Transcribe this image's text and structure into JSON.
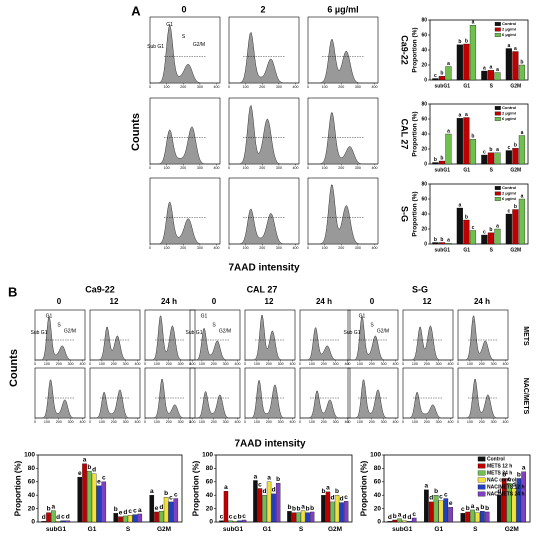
{
  "panel_a": {
    "label": "A",
    "doses": [
      "0",
      "2",
      "6 µg/ml"
    ],
    "cell_lines": [
      "Ca9-22",
      "CAL 27",
      "S-G"
    ],
    "y_label": "Counts",
    "x_label": "7AAD intensity",
    "phase_labels": [
      "Sub G1",
      "G1",
      "S",
      "G2/M"
    ],
    "histogram_xticks": [
      0,
      100,
      200,
      300,
      400
    ],
    "charts": [
      {
        "type": "bar",
        "y_label": "Proportion (%)",
        "categories": [
          "subG1",
          "G1",
          "S",
          "G2M"
        ],
        "ylim": [
          0,
          80
        ],
        "yticks": [
          0,
          20,
          40,
          60,
          80
        ],
        "series": [
          {
            "name": "Control",
            "color": "#111111",
            "values": [
              2,
              47,
              12,
              42
            ],
            "letters": [
              "c",
              "b",
              "a",
              "a"
            ]
          },
          {
            "name": "2 µg/ml",
            "color": "#c00000",
            "values": [
              5,
              48,
              13,
              38
            ],
            "letters": [
              "b",
              "b",
              "a",
              "a"
            ]
          },
          {
            "name": "6 µg/ml",
            "color": "#70c050",
            "values": [
              18,
              73,
              10,
              20
            ],
            "letters": [
              "a",
              "a",
              "a",
              "b"
            ]
          }
        ]
      },
      {
        "type": "bar",
        "y_label": "Proportion (%)",
        "categories": [
          "subG1",
          "G1",
          "S",
          "G2M"
        ],
        "ylim": [
          0,
          80
        ],
        "yticks": [
          0,
          20,
          40,
          60,
          80
        ],
        "series": [
          {
            "name": "Control",
            "color": "#111111",
            "values": [
              2,
              61,
              12,
              18
            ],
            "letters": [
              "b",
              "a",
              "c",
              "c"
            ]
          },
          {
            "name": "2 µg/ml",
            "color": "#c00000",
            "values": [
              4,
              62,
              15,
              21
            ],
            "letters": [
              "b",
              "a",
              "b",
              "b"
            ]
          },
          {
            "name": "6 µg/ml",
            "color": "#70c050",
            "values": [
              40,
              33,
              15,
              38
            ],
            "letters": [
              "a",
              "b",
              "a",
              "a"
            ]
          }
        ]
      },
      {
        "type": "bar",
        "y_label": "Proportion (%)",
        "categories": [
          "subG1",
          "G1",
          "S",
          "G2M"
        ],
        "ylim": [
          0,
          80
        ],
        "yticks": [
          0,
          20,
          40,
          60,
          80
        ],
        "series": [
          {
            "name": "Control",
            "color": "#111111",
            "values": [
              2,
              48,
              12,
              40
            ],
            "letters": [
              "b",
              "a",
              "c",
              "c"
            ]
          },
          {
            "name": "2 µg/ml",
            "color": "#c00000",
            "values": [
              2,
              32,
              15,
              46
            ],
            "letters": [
              "b",
              "b",
              "b",
              "b"
            ]
          },
          {
            "name": "6 µg/ml",
            "color": "#70c050",
            "values": [
              1,
              18,
              20,
              60
            ],
            "letters": [
              "a",
              "c",
              "a",
              "a"
            ]
          }
        ]
      }
    ]
  },
  "panel_b": {
    "label": "B",
    "cell_lines": [
      "Ca9-22",
      "CAL 27",
      "S-G"
    ],
    "times": [
      "0",
      "12",
      "24 h"
    ],
    "treatments": [
      "METS",
      "NAC/METS"
    ],
    "y_label": "Counts",
    "x_label": "7AAD intensity",
    "phase_labels": [
      "Sub G1",
      "G1",
      "S",
      "G2/M"
    ],
    "histogram_xticks": [
      0,
      100,
      200,
      300,
      400
    ],
    "charts": [
      {
        "type": "bar",
        "y_label": "Proportion (%)",
        "categories": [
          "subG1",
          "G1",
          "S",
          "G2M"
        ],
        "ylim": [
          0,
          100
        ],
        "yticks": [
          0,
          20,
          40,
          60,
          80,
          100
        ],
        "series": [
          {
            "name": "Control",
            "color": "#111111",
            "values": [
              1,
              67,
              13,
              40
            ],
            "letters": [
              "d",
              "e",
              "b",
              "a"
            ]
          },
          {
            "name": "METS 12 h",
            "color": "#c00000",
            "values": [
              14,
              87,
              8,
              15
            ],
            "letters": [
              "b",
              "a",
              "e",
              "e"
            ]
          },
          {
            "name": "METS 24 h",
            "color": "#70c050",
            "values": [
              17,
              76,
              9,
              16
            ],
            "letters": [
              "a",
              "b",
              "d",
              "d"
            ]
          },
          {
            "name": "NAC control",
            "color": "#f0e040",
            "values": [
              1,
              72,
              10,
              37
            ],
            "letters": [
              "d",
              "d",
              "c",
              "b"
            ]
          },
          {
            "name": "NAC/METS 12 h",
            "color": "#2040c0",
            "values": [
              2,
              54,
              11,
              30
            ],
            "letters": [
              "c",
              "e",
              "c",
              "c"
            ]
          },
          {
            "name": "NAC/METS 24 h",
            "color": "#8040c0",
            "values": [
              2,
              60,
              12,
              35
            ],
            "letters": [
              "d",
              "c",
              "a",
              "c"
            ]
          }
        ]
      },
      {
        "type": "bar",
        "y_label": "Proportion (%)",
        "categories": [
          "subG1",
          "G1",
          "S",
          "G2M"
        ],
        "ylim": [
          0,
          100
        ],
        "yticks": [
          0,
          20,
          40,
          60,
          80,
          100
        ],
        "series": [
          {
            "name": "Control",
            "color": "#111111",
            "values": [
              2,
              62,
              16,
              40
            ],
            "letters": [
              "c",
              "a",
              "b",
              "b"
            ]
          },
          {
            "name": "METS 12 h",
            "color": "#c00000",
            "values": [
              46,
              50,
              14,
              45
            ],
            "letters": [
              "a",
              "c",
              "b",
              "a"
            ]
          },
          {
            "name": "METS 24 h",
            "color": "#70c050",
            "values": [
              2,
              40,
              14,
              30
            ],
            "letters": [
              "c",
              "d",
              "b",
              "d"
            ]
          },
          {
            "name": "NAC control",
            "color": "#f0e040",
            "values": [
              1,
              60,
              17,
              40
            ],
            "letters": [
              "c",
              "a",
              "a",
              "b"
            ]
          },
          {
            "name": "NAC/METS 12 h",
            "color": "#2040c0",
            "values": [
              2,
              42,
              14,
              29
            ],
            "letters": [
              "b",
              "d",
              "b",
              "d"
            ]
          },
          {
            "name": "NAC/METS 24 h",
            "color": "#8040c0",
            "values": [
              3,
              58,
              15,
              31
            ],
            "letters": [
              "c",
              "b",
              "b",
              "c"
            ]
          }
        ]
      },
      {
        "type": "bar",
        "y_label": "Proportion (%)",
        "categories": [
          "subG1",
          "G1",
          "S",
          "G2M"
        ],
        "ylim": [
          0,
          100
        ],
        "yticks": [
          0,
          20,
          40,
          60,
          80,
          100
        ],
        "series": [
          {
            "name": "Control",
            "color": "#111111",
            "values": [
              1,
              48,
              13,
              40
            ],
            "letters": [
              "d",
              "a",
              "c",
              "d"
            ]
          },
          {
            "name": "METS 12 h",
            "color": "#c00000",
            "values": [
              3,
              30,
              15,
              65
            ],
            "letters": [
              "b",
              "d",
              "b",
              "b"
            ]
          },
          {
            "name": "METS 24 h",
            "color": "#70c050",
            "values": [
              5,
              40,
              18,
              58
            ],
            "letters": [
              "a",
              "b",
              "a",
              "c"
            ]
          },
          {
            "name": "NAC control",
            "color": "#f0e040",
            "values": [
              2,
              32,
              14,
              50
            ],
            "letters": [
              "d",
              "c",
              "a",
              "d"
            ]
          },
          {
            "name": "NAC/METS 12 h",
            "color": "#2040c0",
            "values": [
              1,
              35,
              16,
              65
            ],
            "letters": [
              "d",
              "c",
              "b",
              "b"
            ]
          },
          {
            "name": "NAC/METS 24 h",
            "color": "#8040c0",
            "values": [
              6,
              22,
              15,
              75
            ],
            "letters": [
              "c",
              "e",
              "b",
              "a"
            ]
          }
        ]
      }
    ]
  }
}
